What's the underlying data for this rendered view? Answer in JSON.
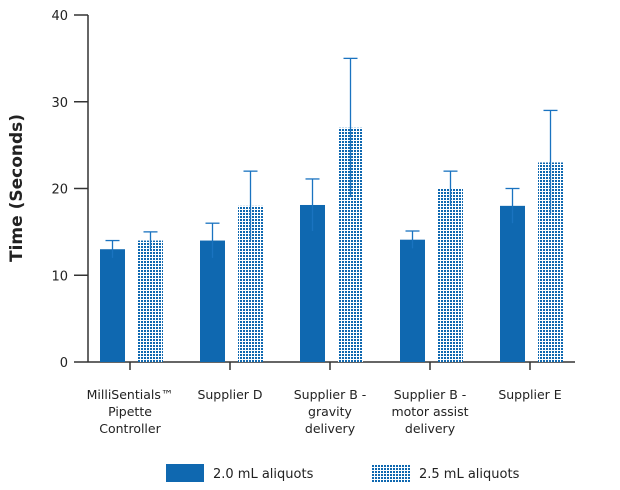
{
  "chart_data": {
    "type": "bar",
    "title": "",
    "xlabel": "",
    "ylabel": "Time (Seconds)",
    "ylim": [
      0,
      40
    ],
    "yticks": [
      0,
      10,
      20,
      30,
      40
    ],
    "grid": false,
    "legend_position": "bottom",
    "categories": [
      [
        "MilliSentials™",
        "Pipette",
        "Controller"
      ],
      [
        "Supplier D"
      ],
      [
        "Supplier B -",
        "gravity",
        "delivery"
      ],
      [
        "Supplier B -",
        "motor assist",
        "delivery"
      ],
      [
        "Supplier E"
      ]
    ],
    "series": [
      {
        "name": "2.0 mL aliquots",
        "color": "#0f68b0",
        "pattern": "solid",
        "values": [
          13,
          14,
          18.1,
          14.1,
          18
        ],
        "errors": [
          1,
          2,
          3,
          1,
          2
        ]
      },
      {
        "name": "2.5 mL aliquots",
        "color": "#0f68b0",
        "pattern": "checkered",
        "values": [
          14,
          18,
          27,
          20,
          23
        ],
        "errors": [
          1,
          4,
          8,
          2,
          6
        ]
      }
    ]
  }
}
